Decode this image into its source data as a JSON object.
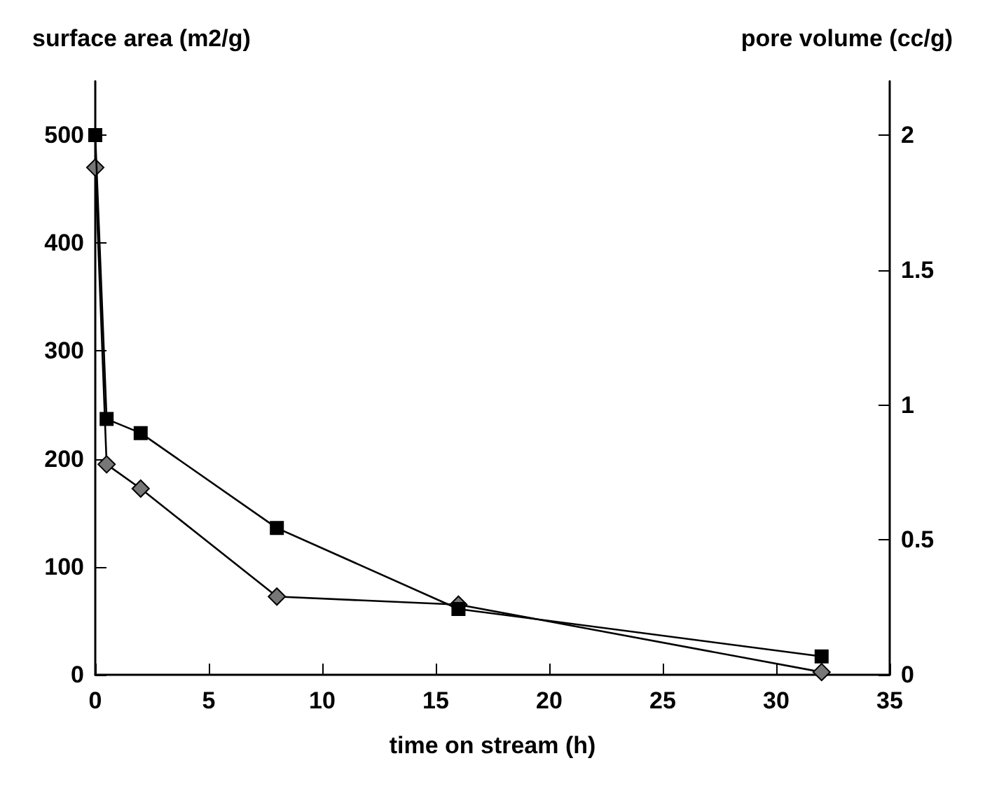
{
  "chart_data": {
    "type": "line",
    "xlabel": "time on stream (h)",
    "ylabel": "surface area (m2/g)",
    "y2label": "pore volume (cc/g)",
    "xlim": [
      0,
      35
    ],
    "xticks": [
      0,
      5,
      10,
      15,
      20,
      25,
      30,
      35
    ],
    "ylim": [
      0,
      550
    ],
    "yticks": [
      0,
      100,
      200,
      300,
      400,
      500
    ],
    "y2lim": [
      0,
      2.2
    ],
    "y2ticks": [
      0,
      0.5,
      1,
      1.5,
      2
    ],
    "grid": false,
    "line_style": "solid",
    "series": [
      {
        "marker": "square",
        "color": "#000000",
        "x": [
          0,
          0.5,
          2,
          8,
          16,
          32
        ],
        "values": [
          500,
          237,
          224,
          136,
          61,
          17
        ]
      },
      {
        "marker": "diamond",
        "color": "#777777",
        "axis": "y2",
        "x": [
          0,
          0.5,
          2,
          8,
          16,
          32
        ],
        "values": [
          1.88,
          0.78,
          0.69,
          0.29,
          0.26,
          0.01
        ]
      }
    ]
  }
}
